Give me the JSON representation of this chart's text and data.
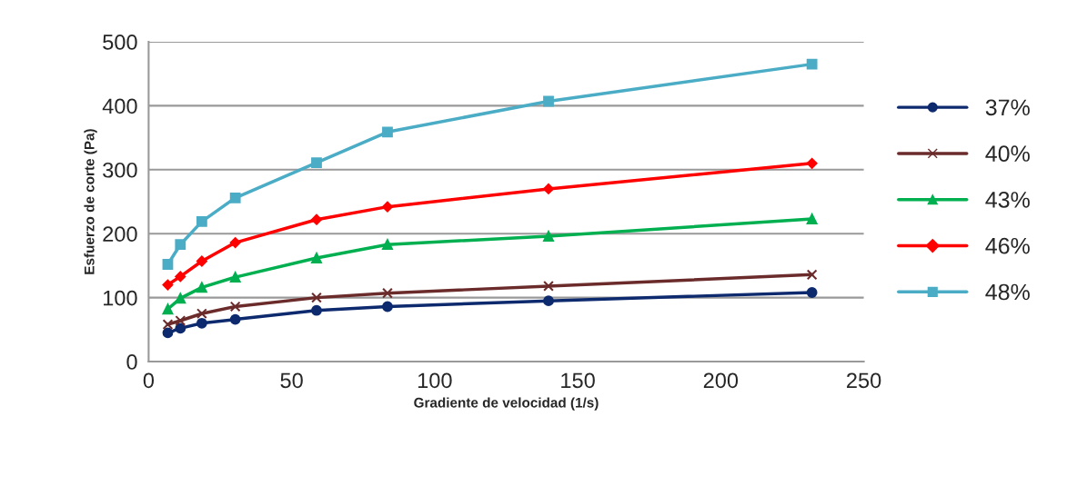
{
  "chart_data": {
    "type": "line",
    "xlabel": "Gradiente de velocidad (1/s)",
    "ylabel": "Esfuerzo de corte (Pa)",
    "x": [
      6.7,
      11.1,
      18.6,
      30.3,
      58.7,
      83.5,
      139.8,
      231.9
    ],
    "series": [
      {
        "name": "37%",
        "color": "#0d2a6e",
        "marker": "circle",
        "values": [
          45,
          52,
          60,
          66,
          80,
          86,
          95,
          108
        ]
      },
      {
        "name": "40%",
        "color": "#6b2b2b",
        "marker": "cross",
        "values": [
          58,
          64,
          75,
          86,
          100,
          107,
          118,
          136
        ]
      },
      {
        "name": "43%",
        "color": "#00b050",
        "marker": "triangle",
        "values": [
          82,
          99,
          116,
          132,
          162,
          183,
          196,
          223
        ]
      },
      {
        "name": "46%",
        "color": "#ff0000",
        "marker": "diamond",
        "values": [
          120,
          133,
          157,
          186,
          222,
          242,
          270,
          310
        ]
      },
      {
        "name": "48%",
        "color": "#4bacc6",
        "marker": "square",
        "values": [
          152,
          183,
          219,
          256,
          311,
          359,
          407,
          465
        ]
      }
    ],
    "xlim": [
      0,
      250
    ],
    "xticks": [
      0,
      50,
      100,
      150,
      200,
      250
    ],
    "ylim": [
      0,
      500
    ],
    "yticks": [
      0,
      100,
      200,
      300,
      400,
      500
    ],
    "grid": "y",
    "legend": "right"
  }
}
